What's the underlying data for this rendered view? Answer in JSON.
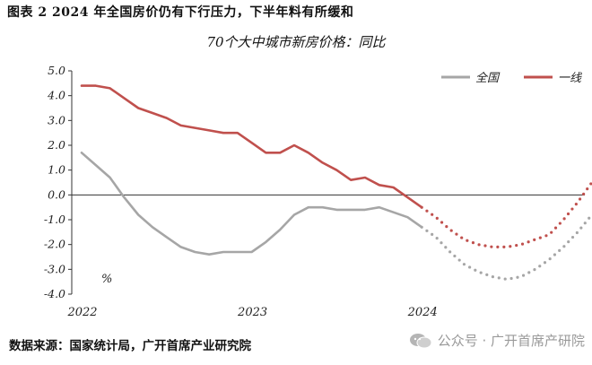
{
  "figure_title": "图表 2 2024 年全国房价仍有下行压力，下半年料有所缓和",
  "source_note": "数据来源：国家统计局，广开首席产业研究院",
  "watermark": {
    "text": "公众号 · 广开首席产研院",
    "icon": "wechat-icon"
  },
  "chart_data": {
    "type": "line",
    "title": "70个大中城市新房价格：同比",
    "ylabel": "%",
    "xlabel": "",
    "ylim": [
      -4.0,
      5.0
    ],
    "yticks": [
      "5.0",
      "4.0",
      "3.0",
      "2.0",
      "1.0",
      "0.0",
      "-1.0",
      "-2.0",
      "-3.0",
      "-4.0"
    ],
    "xtick_labels": [
      "2022",
      "2023",
      "2024"
    ],
    "legend_position": "top-right",
    "colors": {
      "national": "#a6a6a6",
      "tier1": "#c0504d"
    },
    "series": [
      {
        "name": "全国",
        "color": "#a6a6a6",
        "style": "solid",
        "x": [
          0,
          1,
          2,
          3,
          4,
          5,
          6,
          7,
          8,
          9,
          10,
          11,
          12,
          13,
          14,
          15,
          16,
          17,
          18,
          19,
          20,
          21,
          22,
          23,
          24
        ],
        "values": [
          1.7,
          1.2,
          0.7,
          -0.1,
          -0.8,
          -1.3,
          -1.7,
          -2.1,
          -2.3,
          -2.4,
          -2.3,
          -2.3,
          -2.3,
          -1.9,
          -1.4,
          -0.8,
          -0.5,
          -0.5,
          -0.6,
          -0.6,
          -0.6,
          -0.5,
          -0.7,
          -0.9,
          -1.3
        ]
      },
      {
        "name": "一线",
        "color": "#c0504d",
        "style": "solid",
        "x": [
          0,
          1,
          2,
          3,
          4,
          5,
          6,
          7,
          8,
          9,
          10,
          11,
          12,
          13,
          14,
          15,
          16,
          17,
          18,
          19,
          20,
          21,
          22,
          23,
          24
        ],
        "values": [
          4.4,
          4.4,
          4.3,
          3.9,
          3.5,
          3.3,
          3.1,
          2.8,
          2.7,
          2.6,
          2.5,
          2.5,
          2.1,
          1.7,
          1.7,
          2.0,
          1.7,
          1.3,
          1.0,
          0.6,
          0.7,
          0.4,
          0.3,
          -0.1,
          -0.5
        ]
      },
      {
        "name": "全国",
        "color": "#a6a6a6",
        "style": "dotted",
        "x": [
          24,
          25,
          26,
          27,
          28,
          29,
          30,
          31,
          32,
          33,
          34,
          35,
          36
        ],
        "values": [
          -1.3,
          -1.7,
          -2.3,
          -2.8,
          -3.1,
          -3.3,
          -3.4,
          -3.3,
          -3.0,
          -2.6,
          -2.1,
          -1.5,
          -0.8
        ]
      },
      {
        "name": "一线",
        "color": "#c0504d",
        "style": "dotted",
        "x": [
          24,
          25,
          26,
          27,
          28,
          29,
          30,
          31,
          32,
          33,
          34,
          35,
          36
        ],
        "values": [
          -0.5,
          -0.9,
          -1.4,
          -1.8,
          -2.0,
          -2.1,
          -2.1,
          -2.0,
          -1.8,
          -1.6,
          -1.0,
          -0.3,
          0.5
        ]
      }
    ]
  }
}
